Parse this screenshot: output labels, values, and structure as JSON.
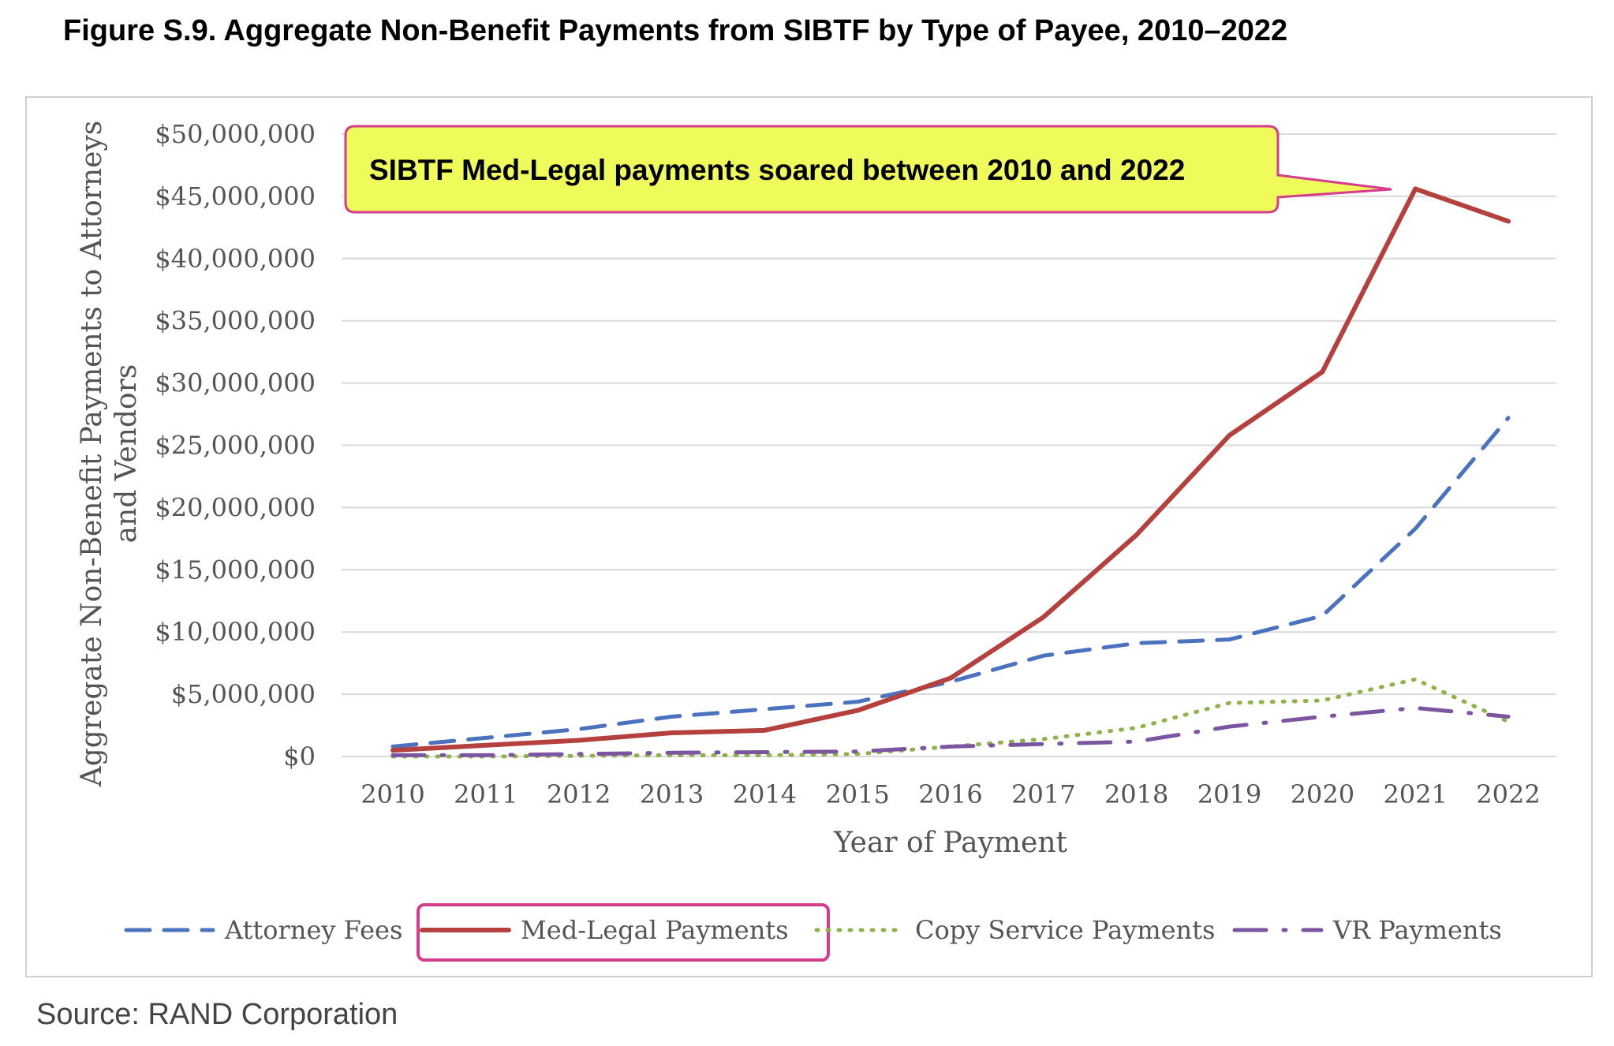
{
  "chart_data": {
    "type": "line",
    "title": "Figure S.9. Aggregate Non-Benefit Payments from SIBTF by Type of Payee, 2010–2022",
    "xlabel": "Year of Payment",
    "ylabel_lines": [
      "Aggregate Non-Benefit Payments to Attorneys",
      "and Vendors"
    ],
    "x": [
      "2010",
      "2011",
      "2012",
      "2013",
      "2014",
      "2015",
      "2016",
      "2017",
      "2018",
      "2019",
      "2020",
      "2021",
      "2022"
    ],
    "ylim": [
      0,
      50000000
    ],
    "yticks": [
      0,
      5000000,
      10000000,
      15000000,
      20000000,
      25000000,
      30000000,
      35000000,
      40000000,
      45000000,
      50000000
    ],
    "ytick_labels": [
      "$0",
      "$5,000,000",
      "$10,000,000",
      "$15,000,000",
      "$20,000,000",
      "$25,000,000",
      "$30,000,000",
      "$35,000,000",
      "$40,000,000",
      "$45,000,000",
      "$50,000,000"
    ],
    "grid": true,
    "legend_position": "bottom",
    "series": [
      {
        "name": "Attorney Fees",
        "color": "#4a72bf",
        "style": "dashed",
        "values": [
          800000,
          1500000,
          2200000,
          3200000,
          3800000,
          4400000,
          6000000,
          8100000,
          9100000,
          9400000,
          11300000,
          18300000,
          27200000
        ]
      },
      {
        "name": "Med-Legal Payments",
        "color": "#b5413e",
        "style": "solid",
        "values": [
          500000,
          900000,
          1300000,
          1900000,
          2100000,
          3700000,
          6300000,
          11200000,
          17800000,
          25800000,
          30900000,
          45600000,
          43000000
        ]
      },
      {
        "name": "Copy Service Payments",
        "color": "#8fb24a",
        "style": "dotted",
        "values": [
          0,
          0,
          50000,
          100000,
          100000,
          200000,
          800000,
          1400000,
          2300000,
          4300000,
          4500000,
          6200000,
          2800000
        ]
      },
      {
        "name": "VR Payments",
        "color": "#7b559f",
        "style": "dashdot",
        "values": [
          100000,
          100000,
          200000,
          300000,
          350000,
          400000,
          800000,
          1000000,
          1200000,
          2400000,
          3200000,
          3900000,
          3200000
        ]
      }
    ],
    "annotation": {
      "text": "SIBTF Med-Legal payments soared between 2010 and 2022",
      "points_to": "2021",
      "fill": "#eefb5a",
      "border": "#d63c8e"
    },
    "highlighted_legend": "Med-Legal Payments"
  },
  "source": "Source: RAND Corporation"
}
